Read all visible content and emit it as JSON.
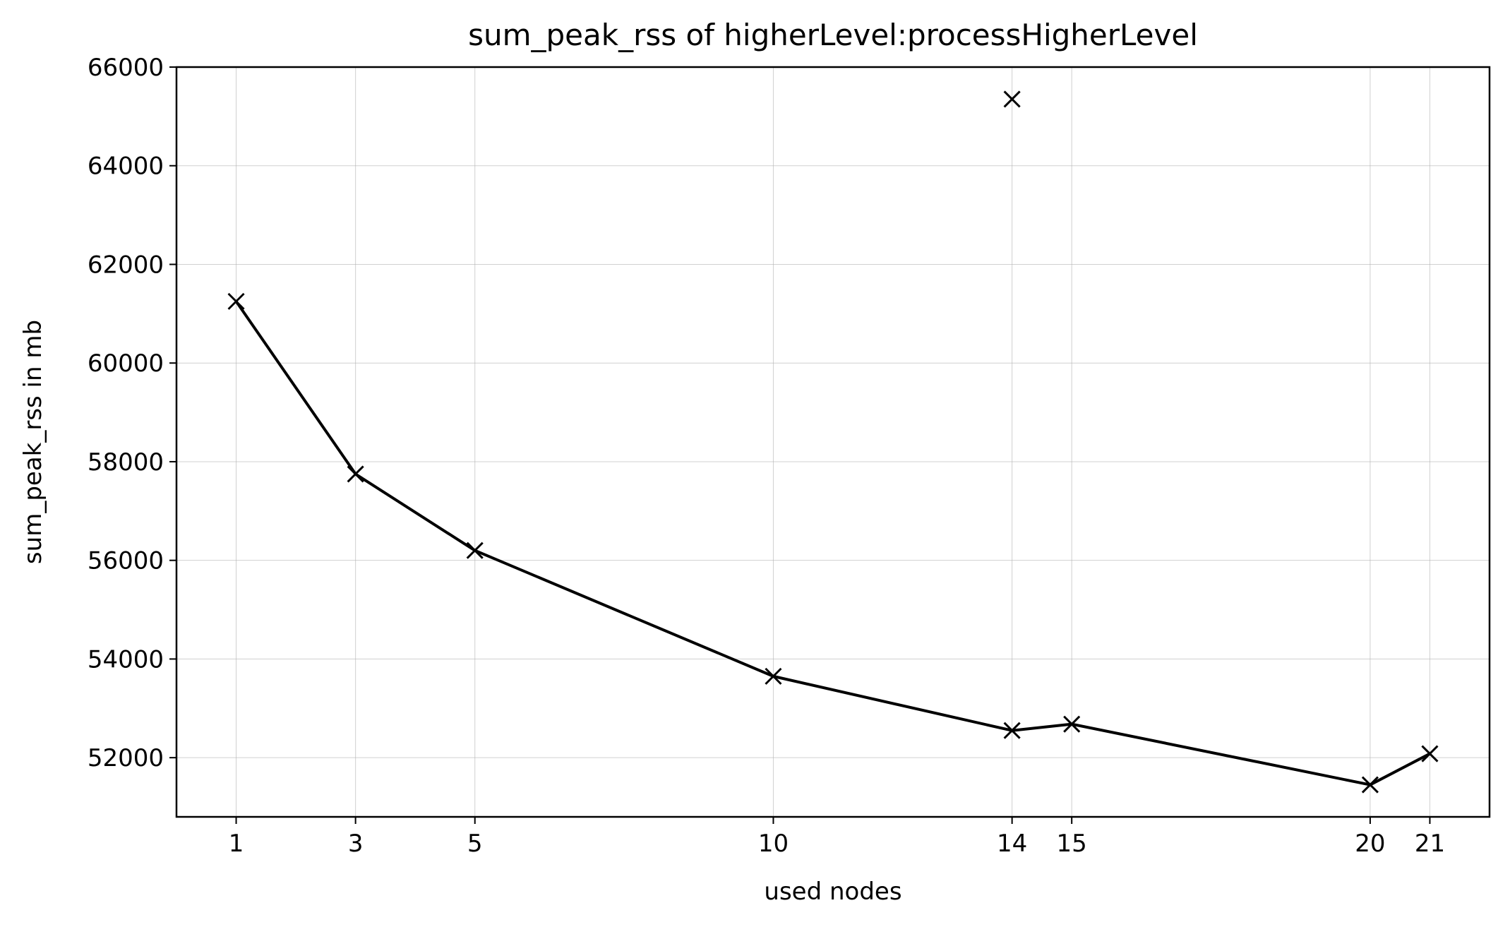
{
  "chart_data": {
    "type": "line",
    "title": "sum_peak_rss of higherLevel:processHigherLevel",
    "xlabel": "used nodes",
    "ylabel": "sum_peak_rss in mb",
    "x": [
      1,
      3,
      5,
      10,
      14,
      15,
      20,
      21
    ],
    "x_ticks": [
      1,
      3,
      5,
      10,
      14,
      15,
      20,
      21
    ],
    "xlim": [
      0,
      22
    ],
    "y_ticks": [
      52000,
      54000,
      56000,
      58000,
      60000,
      62000,
      64000,
      66000
    ],
    "ylim": [
      50800,
      66000
    ],
    "grid": true,
    "series": [
      {
        "color": "#000000",
        "marker": "x",
        "values": [
          61250,
          57750,
          56200,
          53650,
          52550,
          52680,
          51450,
          52080
        ]
      }
    ],
    "outliers": [
      {
        "x": 14,
        "y": 65350,
        "marker": "x",
        "color": "#000000"
      }
    ]
  }
}
